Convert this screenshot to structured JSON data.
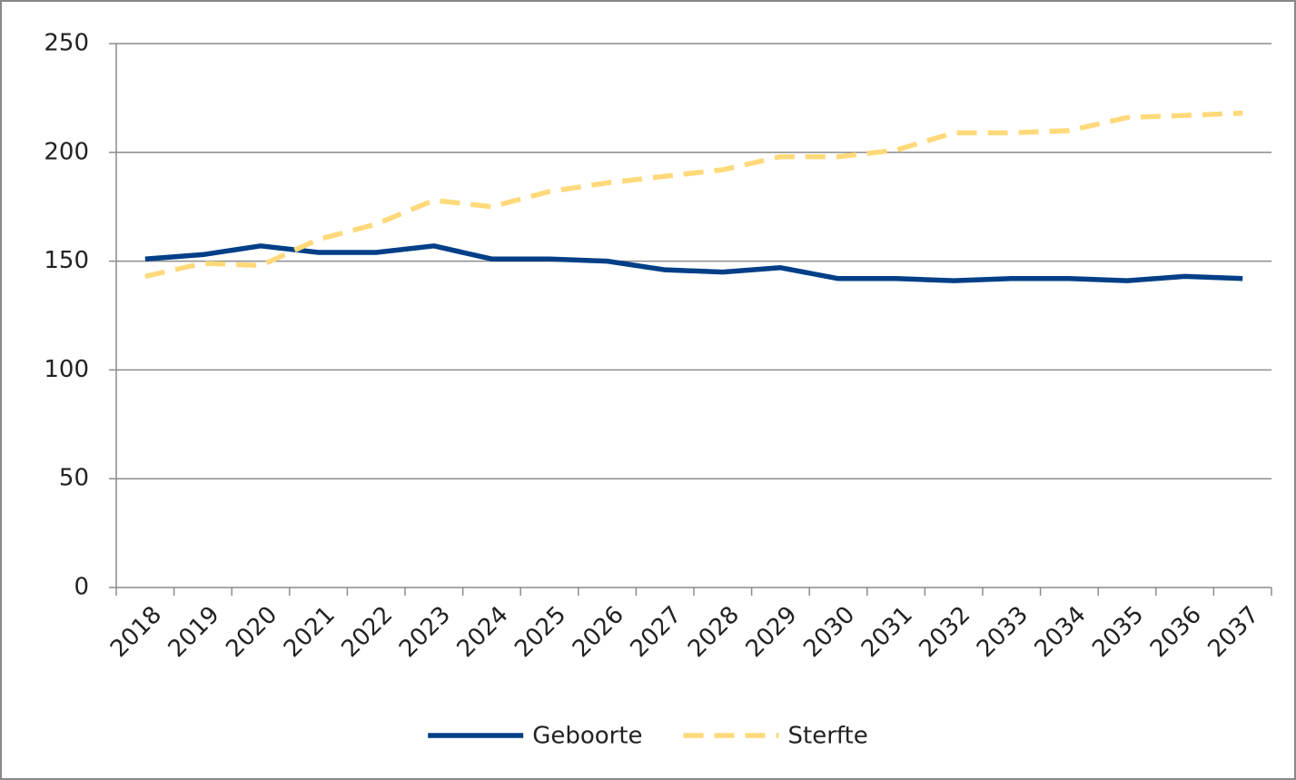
{
  "chart_data": {
    "type": "line",
    "categories": [
      "2018",
      "2019",
      "2020",
      "2021",
      "2022",
      "2023",
      "2024",
      "2025",
      "2026",
      "2027",
      "2028",
      "2029",
      "2030",
      "2031",
      "2032",
      "2033",
      "2034",
      "2035",
      "2036",
      "2037"
    ],
    "series": [
      {
        "name": "Geboorte",
        "color": "#003f87",
        "dashed": false,
        "values": [
          151,
          153,
          157,
          154,
          154,
          157,
          151,
          151,
          150,
          146,
          145,
          147,
          142,
          142,
          141,
          142,
          142,
          141,
          143,
          142
        ]
      },
      {
        "name": "Sterfte",
        "color": "#ffd97a",
        "dashed": true,
        "values": [
          143,
          149,
          148,
          160,
          167,
          178,
          175,
          182,
          186,
          189,
          192,
          198,
          198,
          201,
          209,
          209,
          210,
          216,
          217,
          218
        ]
      }
    ],
    "ylim": [
      0,
      250
    ],
    "yticks": [
      0,
      50,
      100,
      150,
      200,
      250
    ],
    "grid": true,
    "legend": "bottom"
  }
}
